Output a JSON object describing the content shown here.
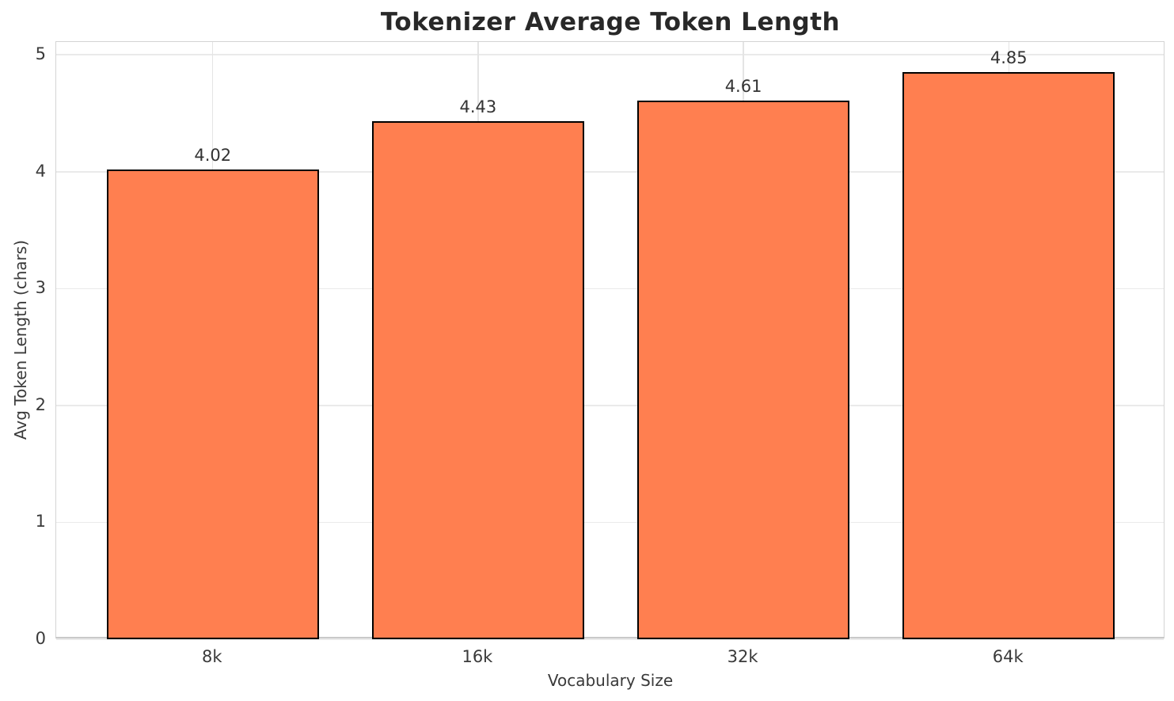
{
  "chart_data": {
    "type": "bar",
    "title": "Tokenizer Average Token Length",
    "xlabel": "Vocabulary Size",
    "ylabel": "Avg Token Length (chars)",
    "categories": [
      "8k",
      "16k",
      "32k",
      "64k"
    ],
    "values": [
      4.02,
      4.43,
      4.61,
      4.85
    ],
    "value_labels": [
      "4.02",
      "4.43",
      "4.61",
      "4.85"
    ],
    "ytick_labels": [
      "0",
      "1",
      "2",
      "3",
      "4",
      "5"
    ],
    "yticks": [
      0,
      1,
      2,
      3,
      4,
      5
    ],
    "ylim": [
      0,
      5.11
    ],
    "xlim": [
      -0.59,
      3.59
    ],
    "bar_width_units": 0.8,
    "grid": true,
    "legend": "none",
    "colors": {
      "bar_fill": "#FF7F50",
      "bar_edge": "#000000",
      "background": "#FFFFFF",
      "h_grid": "#EAEAEA",
      "v_grid": "#E4E4E4",
      "spine": "#D4D4D4",
      "title_text": "#282828",
      "tick_text": "#3A3A3A",
      "value_text": "#333333"
    }
  }
}
